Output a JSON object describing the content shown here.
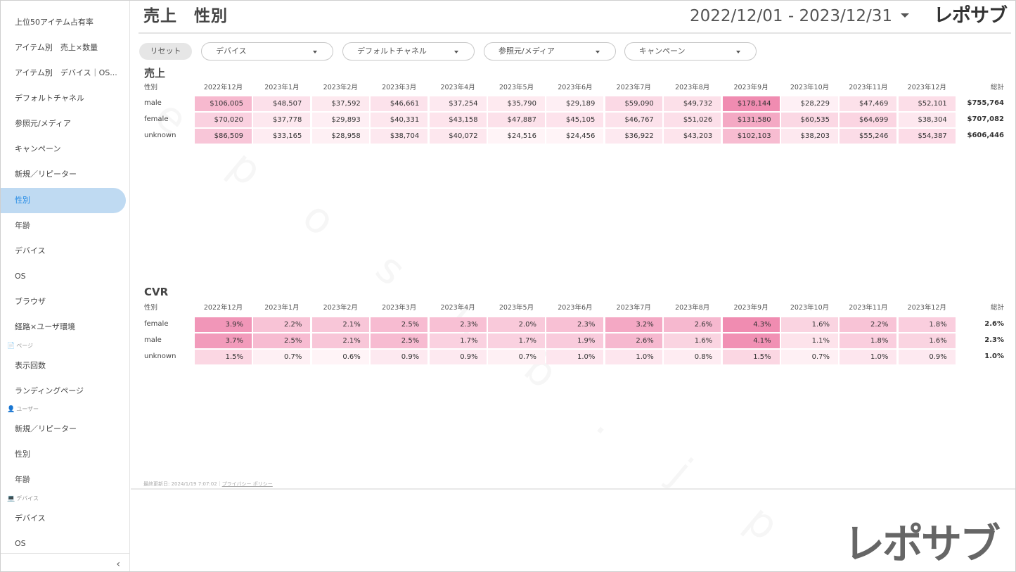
{
  "sidebar": {
    "items": [
      {
        "label": "上位50アイテム占有率"
      },
      {
        "label": "アイテム別　売上×数量"
      },
      {
        "label": "アイテム別　デバイス｜OS..."
      },
      {
        "label": "デフォルトチャネル"
      },
      {
        "label": "参照元/メディア"
      },
      {
        "label": "キャンペーン"
      },
      {
        "label": "新規／リピーター"
      },
      {
        "label": "性別",
        "active": true
      },
      {
        "label": "年齢"
      },
      {
        "label": "デバイス"
      },
      {
        "label": "OS"
      },
      {
        "label": "ブラウザ"
      },
      {
        "label": "経路×ユーザ環境"
      },
      {
        "label": "表示回数"
      },
      {
        "label": "ランディングページ"
      },
      {
        "label": "新規／リピーター"
      },
      {
        "label": "性別"
      },
      {
        "label": "年齢"
      },
      {
        "label": "デバイス"
      },
      {
        "label": "OS"
      }
    ],
    "sections": [
      {
        "label": "ページ",
        "icon": "page-icon"
      },
      {
        "label": "ユーザー",
        "icon": "user-icon"
      },
      {
        "label": "デバイス",
        "icon": "laptop-icon"
      }
    ],
    "collapse_icon": "‹"
  },
  "header": {
    "title": "売上　性別",
    "date_range": "2022/12/01 - 2023/12/31",
    "brand": "レポサブ"
  },
  "filters": {
    "reset_label": "リセット",
    "items": [
      {
        "label": "デバイス"
      },
      {
        "label": "デフォルトチャネル"
      },
      {
        "label": "参照元/メディア"
      },
      {
        "label": "キャンペーン"
      }
    ]
  },
  "sales_table": {
    "title": "売上",
    "row_header": "性別",
    "total_header": "総計",
    "columns": [
      "2022年12月",
      "2023年1月",
      "2023年2月",
      "2023年3月",
      "2023年4月",
      "2023年5月",
      "2023年6月",
      "2023年7月",
      "2023年8月",
      "2023年9月",
      "2023年10月",
      "2023年11月",
      "2023年12月"
    ],
    "rows": [
      {
        "name": "male",
        "values": [
          "$106,005",
          "$48,507",
          "$37,592",
          "$46,661",
          "$37,254",
          "$35,790",
          "$29,189",
          "$59,090",
          "$49,732",
          "$178,144",
          "$28,229",
          "$47,469",
          "$52,101"
        ],
        "numeric": [
          106005,
          48507,
          37592,
          46661,
          37254,
          35790,
          29189,
          59090,
          49732,
          178144,
          28229,
          47469,
          52101
        ],
        "total": "$755,764"
      },
      {
        "name": "female",
        "values": [
          "$70,020",
          "$37,778",
          "$29,893",
          "$40,331",
          "$43,158",
          "$47,887",
          "$45,105",
          "$46,767",
          "$51,026",
          "$131,580",
          "$60,535",
          "$64,699",
          "$38,304"
        ],
        "numeric": [
          70020,
          37778,
          29893,
          40331,
          43158,
          47887,
          45105,
          46767,
          51026,
          131580,
          60535,
          64699,
          38304
        ],
        "total": "$707,082"
      },
      {
        "name": "unknown",
        "values": [
          "$86,509",
          "$33,165",
          "$28,958",
          "$38,704",
          "$40,072",
          "$24,516",
          "$24,456",
          "$36,922",
          "$43,203",
          "$102,103",
          "$38,203",
          "$55,246",
          "$54,387"
        ],
        "numeric": [
          86509,
          33165,
          28958,
          38704,
          40072,
          24516,
          24456,
          36922,
          43203,
          102103,
          38203,
          55246,
          54387
        ],
        "total": "$606,446"
      }
    ]
  },
  "cvr_table": {
    "title": "CVR",
    "row_header": "性別",
    "total_header": "総計",
    "columns": [
      "2022年12月",
      "2023年1月",
      "2023年2月",
      "2023年3月",
      "2023年4月",
      "2023年5月",
      "2023年6月",
      "2023年7月",
      "2023年8月",
      "2023年9月",
      "2023年10月",
      "2023年11月",
      "2023年12月"
    ],
    "rows": [
      {
        "name": "female",
        "values": [
          "3.9%",
          "2.2%",
          "2.1%",
          "2.5%",
          "2.3%",
          "2.0%",
          "2.3%",
          "3.2%",
          "2.6%",
          "4.3%",
          "1.6%",
          "2.2%",
          "1.8%"
        ],
        "numeric": [
          3.9,
          2.2,
          2.1,
          2.5,
          2.3,
          2.0,
          2.3,
          3.2,
          2.6,
          4.3,
          1.6,
          2.2,
          1.8
        ],
        "total": "2.6%"
      },
      {
        "name": "male",
        "values": [
          "3.7%",
          "2.5%",
          "2.1%",
          "2.5%",
          "1.7%",
          "1.7%",
          "1.9%",
          "2.6%",
          "1.6%",
          "4.1%",
          "1.1%",
          "1.8%",
          "1.6%"
        ],
        "numeric": [
          3.7,
          2.5,
          2.1,
          2.5,
          1.7,
          1.7,
          1.9,
          2.6,
          1.6,
          4.1,
          1.1,
          1.8,
          1.6
        ],
        "total": "2.3%"
      },
      {
        "name": "unknown",
        "values": [
          "1.5%",
          "0.7%",
          "0.6%",
          "0.9%",
          "0.9%",
          "0.7%",
          "1.0%",
          "1.0%",
          "0.8%",
          "1.5%",
          "0.7%",
          "1.0%",
          "0.9%"
        ],
        "numeric": [
          1.5,
          0.7,
          0.6,
          0.9,
          0.9,
          0.7,
          1.0,
          1.0,
          0.8,
          1.5,
          0.7,
          1.0,
          0.9
        ],
        "total": "1.0%"
      }
    ]
  },
  "heat_colors": {
    "low": "#fff4f7",
    "high": "#f08cb1"
  },
  "footer": {
    "updated": "最終更新日: 2024/1/19 7:07:02",
    "separator": "｜",
    "privacy": "プライバシー ポリシー"
  },
  "big_logo": "レポサブ",
  "watermark_text": "reposub.jp"
}
